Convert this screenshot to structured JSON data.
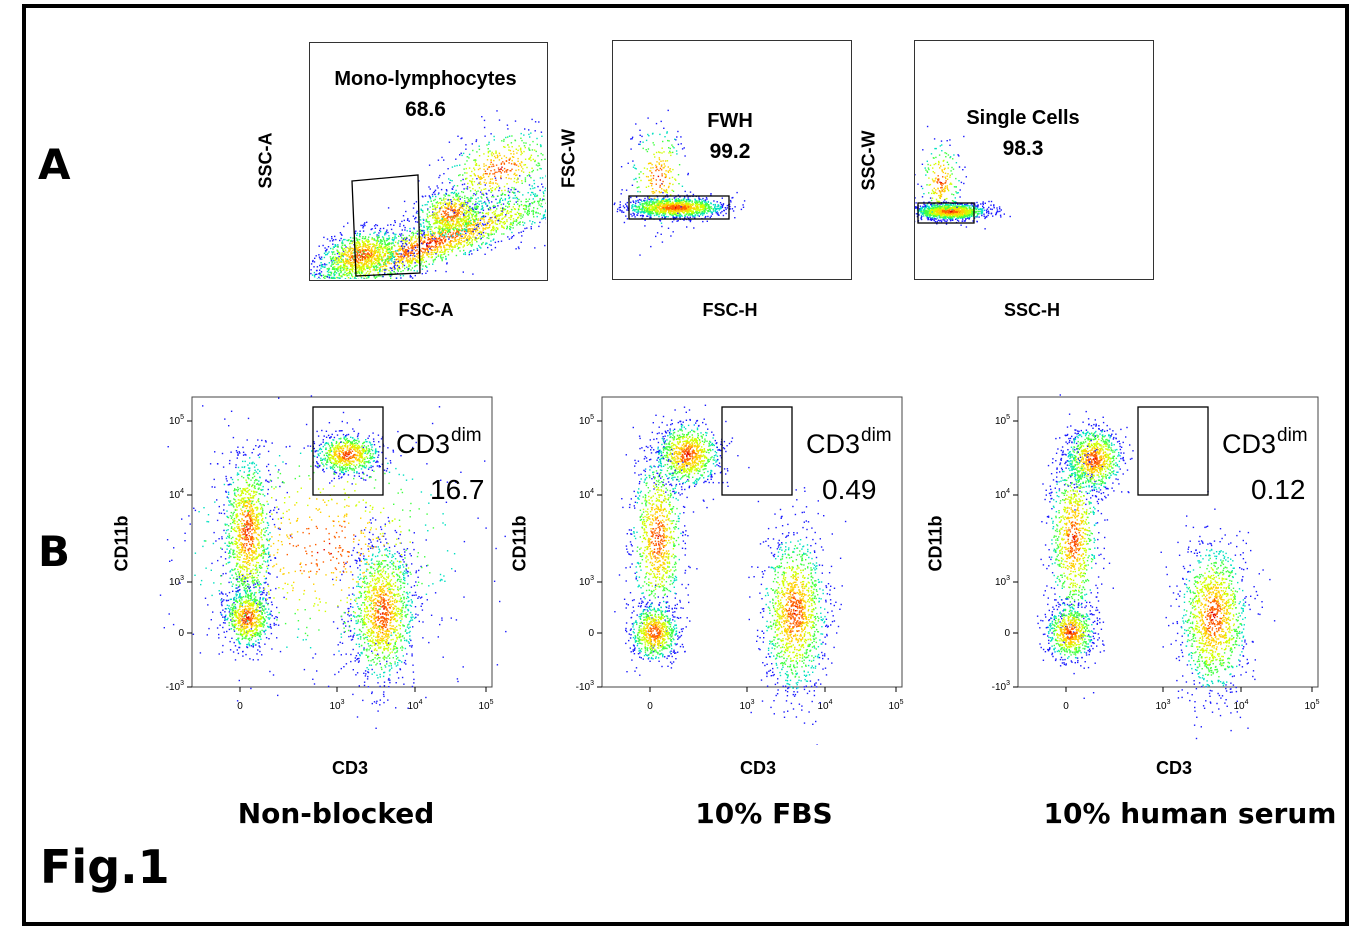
{
  "figure_label": "Fig.1",
  "panel_a_label": "A",
  "panel_b_label": "B",
  "colormap": [
    "#1a1aff",
    "#00aaff",
    "#00e0c0",
    "#40ff40",
    "#d0ff00",
    "#ffd000",
    "#ff6000",
    "#e00000"
  ],
  "chart_data": [
    {
      "type": "scatter",
      "panel": "A",
      "xlabel": "FSC-A",
      "ylabel": "SSC-A",
      "gate": {
        "name": "Mono-lymphocytes",
        "value": "68.6",
        "percent": 68.6
      }
    },
    {
      "type": "scatter",
      "panel": "A",
      "xlabel": "FSC-H",
      "ylabel": "FSC-W",
      "gate": {
        "name": "FWH",
        "value": "99.2",
        "percent": 99.2
      }
    },
    {
      "type": "scatter",
      "panel": "A",
      "xlabel": "SSC-H",
      "ylabel": "SSC-W",
      "gate": {
        "name": "Single Cells",
        "value": "98.3",
        "percent": 98.3
      }
    },
    {
      "type": "scatter",
      "panel": "B",
      "condition": "Non-blocked",
      "xlabel": "CD3",
      "ylabel": "CD11b",
      "x_ticks": [
        "0",
        "10^3",
        "10^4",
        "10^5"
      ],
      "y_ticks": [
        "10^5",
        "10^4",
        "10^3",
        "0",
        "-10^3"
      ],
      "gate": {
        "name": "CD3",
        "superscript": "dim",
        "value": "16.7",
        "percent": 16.7
      }
    },
    {
      "type": "scatter",
      "panel": "B",
      "condition": "10% FBS",
      "xlabel": "CD3",
      "ylabel": "CD11b",
      "x_ticks": [
        "0",
        "10^3",
        "10^4",
        "10^5"
      ],
      "y_ticks": [
        "10^5",
        "10^4",
        "10^3",
        "0",
        "-10^3"
      ],
      "gate": {
        "name": "CD3",
        "superscript": "dim",
        "value": "0.49",
        "percent": 0.49
      }
    },
    {
      "type": "scatter",
      "panel": "B",
      "condition": "10% human serum",
      "xlabel": "CD3",
      "ylabel": "CD11b",
      "x_ticks": [
        "0",
        "10^3",
        "10^4",
        "10^5"
      ],
      "y_ticks": [
        "10^5",
        "10^4",
        "10^3",
        "0",
        "-10^3"
      ],
      "gate": {
        "name": "CD3",
        "superscript": "dim",
        "value": "0.12",
        "percent": 0.12
      }
    }
  ]
}
